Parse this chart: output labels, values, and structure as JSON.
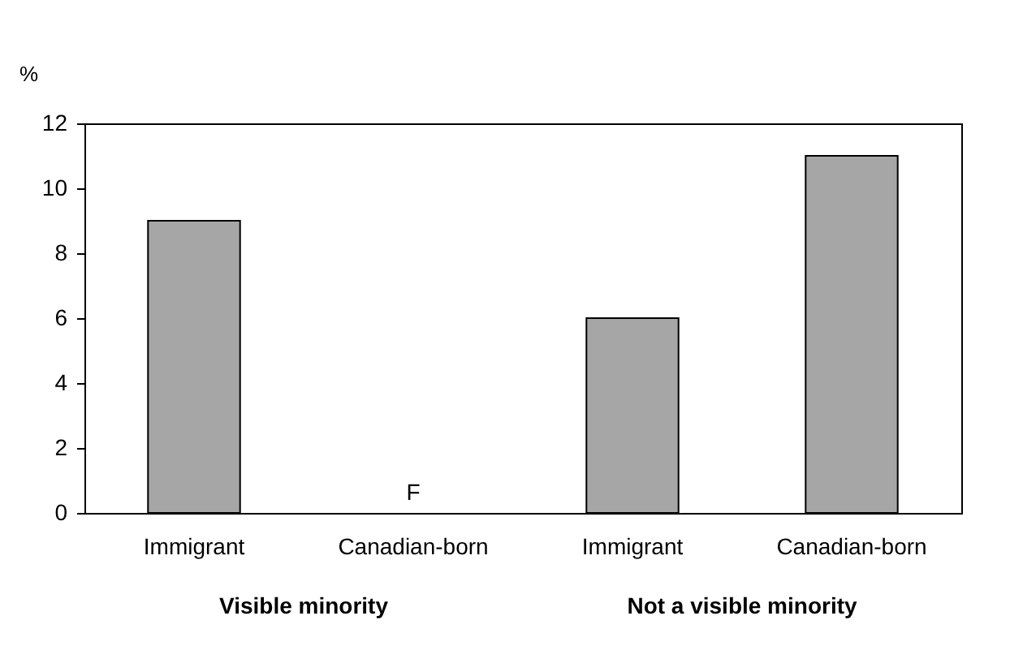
{
  "chart_data": {
    "type": "bar",
    "ylabel": "%",
    "categories": [
      "Immigrant",
      "Canadian-born",
      "Immigrant",
      "Canadian-born"
    ],
    "values": [
      9,
      null,
      6,
      11
    ],
    "value_labels": [
      null,
      "F",
      null,
      null
    ],
    "color": "#a6a6a6",
    "ylim": [
      0,
      12
    ],
    "yticks": [
      0,
      2,
      4,
      6,
      8,
      10,
      12
    ],
    "grid": false,
    "annotations": [
      "Visible minority",
      "Not a visible minority"
    ]
  }
}
